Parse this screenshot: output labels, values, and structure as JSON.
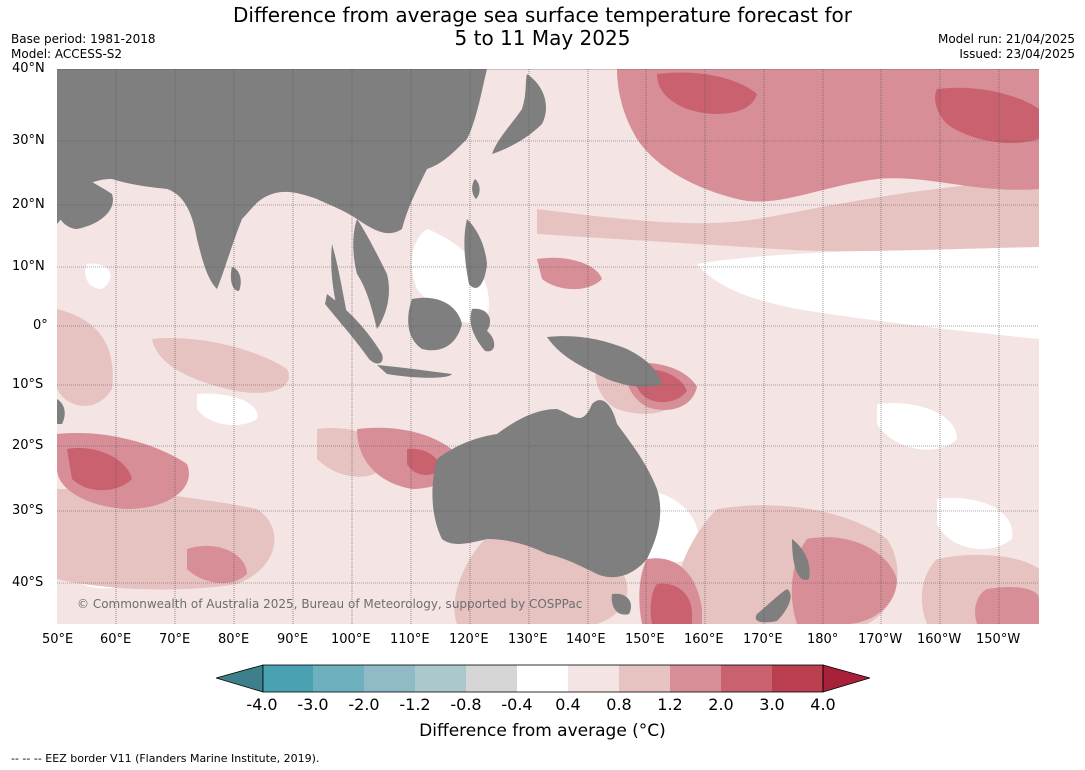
{
  "title_line1": "Difference from average sea surface temperature forecast for",
  "title_line2": "5 to 11 May 2025",
  "meta_left": [
    "Base period: 1981-2018",
    "Model: ACCESS-S2"
  ],
  "meta_right": [
    "Model run: 21/04/2025",
    "Issued: 23/04/2025"
  ],
  "lat_labels": [
    "40°N",
    "30°N",
    "20°N",
    "10°N",
    "0°",
    "10°S",
    "20°S",
    "30°S",
    "40°S"
  ],
  "lon_labels": [
    "50°E",
    "60°E",
    "70°E",
    "80°E",
    "90°E",
    "100°E",
    "110°E",
    "120°E",
    "130°E",
    "140°E",
    "150°E",
    "160°E",
    "170°E",
    "180°",
    "170°W",
    "160°W",
    "150°W"
  ],
  "colorbar": {
    "ticks": [
      "-4.0",
      "-3.0",
      "-2.0",
      "-1.2",
      "-0.8",
      "-0.4",
      "0.4",
      "0.8",
      "1.2",
      "2.0",
      "3.0",
      "4.0"
    ],
    "colors": [
      "#3d7f8a",
      "#4aa1b2",
      "#6fb0bf",
      "#8fbac6",
      "#abc8cc",
      "#d6d6d6",
      "#ffffff",
      "#f4e4e4",
      "#e6c3c1",
      "#d88e97",
      "#c9616f",
      "#bb404f",
      "#a8203a"
    ],
    "title": "Difference from average (°C)"
  },
  "colors": {
    "land": "#7f7f7f",
    "grid": "#555555",
    "anom_low": "#f4e4e4",
    "anom_mid": "#e6c3c1",
    "anom_high": "#d88e97",
    "anom_vhigh": "#c9616f"
  },
  "copyright": "© Commonwealth of Australia 2025, Bureau of Meteorology, supported by COSPPac",
  "footer": "--  --  -- EEZ border V11 (Flanders Marine Institute, 2019)."
}
